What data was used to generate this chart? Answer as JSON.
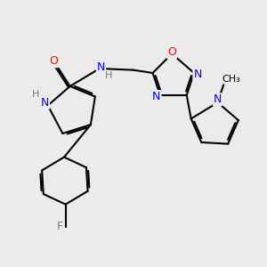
{
  "bg_color": "#ebebeb",
  "atom_colors": {
    "N": "#0000ff",
    "O": "#ff0000",
    "F": "#cc44cc",
    "C": "#000000",
    "H": "#777777"
  },
  "bond_color": "#000000",
  "bond_width": 1.5,
  "dbo": 0.06,
  "figsize": [
    3.0,
    3.0
  ],
  "dpi": 100
}
